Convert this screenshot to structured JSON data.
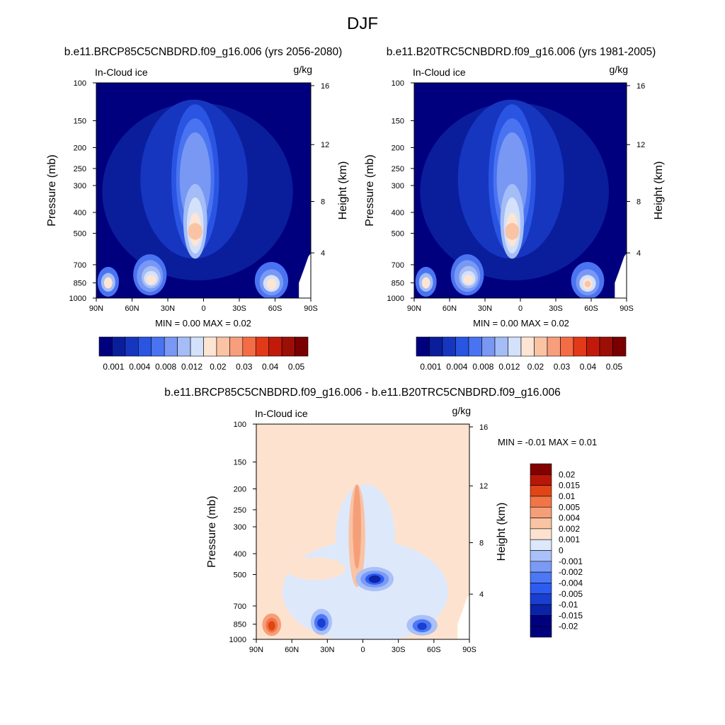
{
  "figure": {
    "title": "DJF"
  },
  "colors": {
    "fill_palette": [
      "#00007f",
      "#0a1e9c",
      "#1636c0",
      "#2a55e2",
      "#4a73f2",
      "#7898f4",
      "#a5bdf6",
      "#d4e1fb",
      "#fde5d3",
      "#fac3a4",
      "#f79e7c",
      "#f46c46",
      "#e23a18",
      "#c21a0a",
      "#9b0f06",
      "#7a0000"
    ],
    "diff_palette": [
      "#00007f",
      "#0a23a8",
      "#1a3ecf",
      "#2c5cf0",
      "#4c78f5",
      "#7a9af5",
      "#a9c0f8",
      "#dde8fb",
      "#fde3cf",
      "#f9c3a4",
      "#f59f79",
      "#f27547",
      "#e04515",
      "#b81707",
      "#820000"
    ]
  },
  "chart_data": [
    {
      "id": "panel-rcp85",
      "type": "contour",
      "title": "b.e11.BRCP85C5CNBDRD.f09_g16.006 (yrs 2056-2080)",
      "left_label": "In-Cloud ice",
      "units": "g/kg",
      "ylabel": "Pressure (mb)",
      "ylabel_right": "Height (km)",
      "x_ticks": [
        "90N",
        "60N",
        "30N",
        "0",
        "30S",
        "60S",
        "90S"
      ],
      "y_ticks": [
        "100",
        "150",
        "200",
        "250",
        "300",
        "400",
        "500",
        "700",
        "850",
        "1000"
      ],
      "y_ticks_right": [
        "16",
        "12",
        "8",
        "4"
      ],
      "minmax_text": "MIN =   0.00  MAX =   0.02",
      "xlim": [
        90,
        -90
      ],
      "ylim": [
        1000,
        100
      ],
      "colorbar": {
        "orientation": "horizontal",
        "levels": [
          "0.001",
          "0.004",
          "0.008",
          "0.012",
          "0.02",
          "0.03",
          "0.04",
          "0.05"
        ]
      },
      "features": [
        {
          "lat": 5,
          "p": 300,
          "peak": 0.02,
          "desc": "tropical upper-level ice maximum near 500 mb"
        },
        {
          "lat": 45,
          "p": 780,
          "peak": 0.012,
          "desc": "northern mid-latitude low-level maximum"
        },
        {
          "lat": 80,
          "p": 850,
          "peak": 0.012,
          "desc": "northern polar low-level maximum"
        },
        {
          "lat": -57,
          "p": 850,
          "peak": 0.012,
          "desc": "southern ocean low-level maximum"
        }
      ]
    },
    {
      "id": "panel-b20tr",
      "type": "contour",
      "title": "b.e11.B20TRC5CNBDRD.f09_g16.006 (yrs 1981-2005)",
      "left_label": "In-Cloud ice",
      "units": "g/kg",
      "ylabel": "Pressure (mb)",
      "ylabel_right": "Height (km)",
      "x_ticks": [
        "90N",
        "60N",
        "30N",
        "0",
        "30S",
        "60S",
        "90S"
      ],
      "y_ticks": [
        "100",
        "150",
        "200",
        "250",
        "300",
        "400",
        "500",
        "700",
        "850",
        "1000"
      ],
      "y_ticks_right": [
        "16",
        "12",
        "8",
        "4"
      ],
      "minmax_text": "MIN =   0.00  MAX =   0.02",
      "xlim": [
        90,
        -90
      ],
      "ylim": [
        1000,
        100
      ],
      "colorbar": {
        "orientation": "horizontal",
        "levels": [
          "0.001",
          "0.004",
          "0.008",
          "0.012",
          "0.02",
          "0.03",
          "0.04",
          "0.05"
        ]
      },
      "features": [
        {
          "lat": 5,
          "p": 300,
          "peak": 0.02,
          "desc": "tropical upper-level ice maximum near 500 mb"
        },
        {
          "lat": 45,
          "p": 780,
          "peak": 0.012,
          "desc": "northern mid-latitude low-level maximum"
        },
        {
          "lat": 80,
          "p": 850,
          "peak": 0.012,
          "desc": "northern polar low-level maximum"
        },
        {
          "lat": -57,
          "p": 850,
          "peak": 0.02,
          "desc": "southern ocean low-level maximum"
        }
      ]
    },
    {
      "id": "panel-diff",
      "type": "contour",
      "title": "b.e11.BRCP85C5CNBDRD.f09_g16.006 - b.e11.B20TRC5CNBDRD.f09_g16.006",
      "left_label": "In-Cloud ice",
      "units": "g/kg",
      "ylabel": "Pressure (mb)",
      "ylabel_right": "Height (km)",
      "x_ticks": [
        "90N",
        "60N",
        "30N",
        "0",
        "30S",
        "60S",
        "90S"
      ],
      "y_ticks": [
        "100",
        "150",
        "200",
        "250",
        "300",
        "400",
        "500",
        "700",
        "850",
        "1000"
      ],
      "y_ticks_right": [
        "16",
        "12",
        "8",
        "4"
      ],
      "minmax_text": "MIN =  -0.01  MAX =   0.01",
      "xlim": [
        90,
        -90
      ],
      "ylim": [
        1000,
        100
      ],
      "colorbar": {
        "orientation": "vertical",
        "levels": [
          "0.02",
          "0.015",
          "0.01",
          "0.005",
          "0.004",
          "0.002",
          "0.001",
          "0",
          "-0.001",
          "-0.002",
          "-0.004",
          "-0.005",
          "-0.01",
          "-0.015",
          "-0.02"
        ]
      },
      "features": [
        {
          "lat": 0,
          "p": 350,
          "peak": 0.001,
          "desc": "positive change column in tropical upper troposphere"
        },
        {
          "lat": -10,
          "p": 520,
          "peak": -0.01,
          "desc": "negative change near 500 mb in tropics"
        },
        {
          "lat": 77,
          "p": 850,
          "peak": 0.01,
          "desc": "positive change over northern polar low levels"
        },
        {
          "lat": 35,
          "p": 830,
          "peak": -0.005,
          "desc": "negative change northern mid-latitudes"
        },
        {
          "lat": -50,
          "p": 870,
          "peak": -0.005,
          "desc": "negative change southern ocean"
        }
      ]
    }
  ]
}
